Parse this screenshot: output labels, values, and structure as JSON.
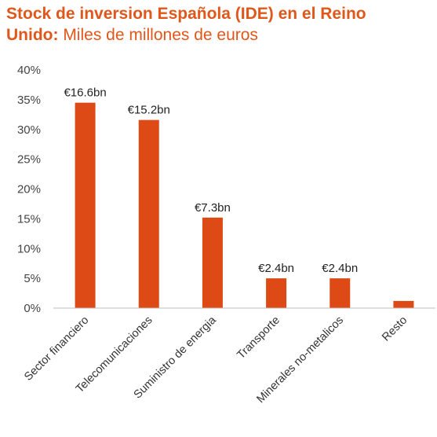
{
  "title": {
    "line1": "Stock de inversion Española (IDE) en el Reino",
    "line2_bold": "Unido:",
    "line2_rest": " Miles de millones de euros"
  },
  "chart_data": {
    "type": "bar",
    "categories": [
      "Sector financiero",
      "Telecomunicaciones",
      "Suministro de energia",
      "Transporte",
      "Minerales no-metalicos",
      "Resto"
    ],
    "values": [
      34.5,
      31.6,
      15.2,
      5.0,
      5.0,
      1.2
    ],
    "data_labels": [
      "€16.6bn",
      "€15.2bn",
      "€7.3bn",
      "€2.4bn",
      "€2.4bn",
      ""
    ],
    "y_ticks": [
      "0%",
      "5%",
      "10%",
      "15%",
      "20%",
      "25%",
      "30%",
      "35%",
      "40%"
    ],
    "ylim": [
      0,
      40
    ],
    "xlabel": "",
    "ylabel": "",
    "bar_color": "#dd4a16",
    "grid": false,
    "legend": "none"
  }
}
